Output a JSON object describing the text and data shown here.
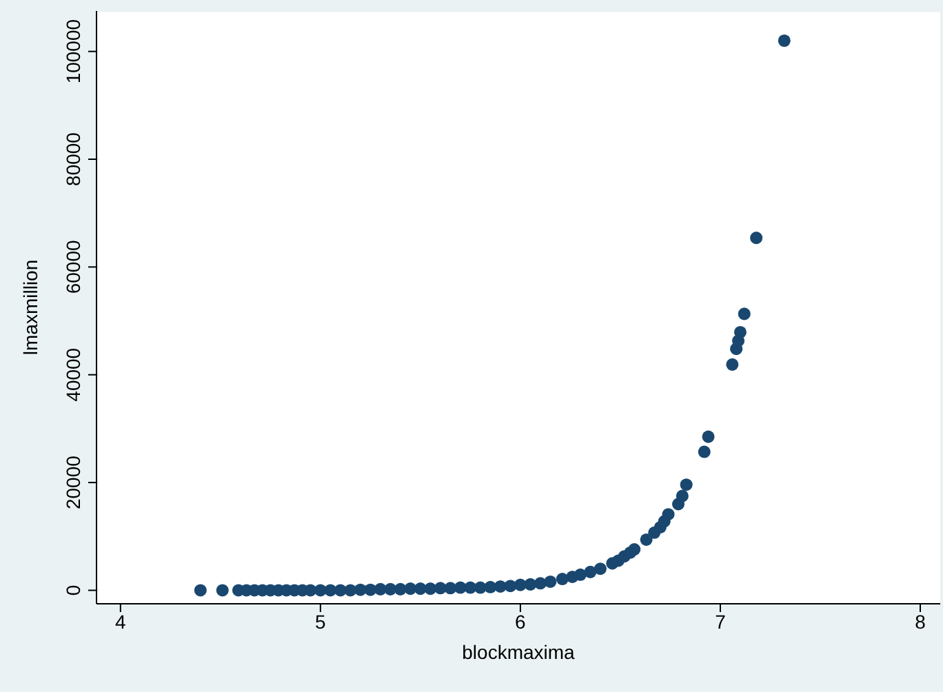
{
  "chart_data": {
    "type": "scatter",
    "xlabel": "blockmaxima",
    "ylabel": "lmaxmillion",
    "x": [
      4.4,
      4.51,
      4.59,
      4.63,
      4.67,
      4.71,
      4.75,
      4.79,
      4.83,
      4.87,
      4.91,
      4.95,
      5.0,
      5.05,
      5.1,
      5.15,
      5.2,
      5.25,
      5.3,
      5.35,
      5.4,
      5.45,
      5.5,
      5.55,
      5.6,
      5.65,
      5.7,
      5.75,
      5.8,
      5.85,
      5.9,
      5.95,
      6.0,
      6.05,
      6.1,
      6.15,
      6.21,
      6.26,
      6.3,
      6.35,
      6.4,
      6.46,
      6.49,
      6.52,
      6.55,
      6.57,
      6.63,
      6.67,
      6.7,
      6.72,
      6.74,
      6.79,
      6.81,
      6.83,
      6.92,
      6.94,
      7.06,
      7.08,
      7.09,
      7.1,
      7.12,
      7.18,
      7.32
    ],
    "series": [
      {
        "color": "#1a476f",
        "values": [
          0,
          0,
          0,
          0,
          0,
          0,
          0,
          0,
          0,
          0,
          0,
          0,
          0,
          0,
          0,
          0,
          100,
          100,
          200,
          200,
          200,
          300,
          300,
          300,
          400,
          400,
          500,
          500,
          500,
          600,
          700,
          800,
          1000,
          1100,
          1300,
          1600,
          2100,
          2500,
          2900,
          3400,
          4000,
          5000,
          5500,
          6300,
          7000,
          7600,
          9400,
          10700,
          11700,
          12800,
          14100,
          16000,
          17500,
          19600,
          25700,
          28500,
          41900,
          44800,
          46300,
          47900,
          51300,
          65400,
          102000
        ]
      }
    ],
    "xlim": [
      3.88,
      8.1
    ],
    "xticks": [
      4,
      5,
      6,
      7,
      8
    ],
    "ylim": [
      -2500,
      107500
    ],
    "yticks": [
      0,
      20000,
      40000,
      60000,
      80000,
      100000
    ],
    "grid": "y",
    "marker": "circle",
    "legend": false
  }
}
